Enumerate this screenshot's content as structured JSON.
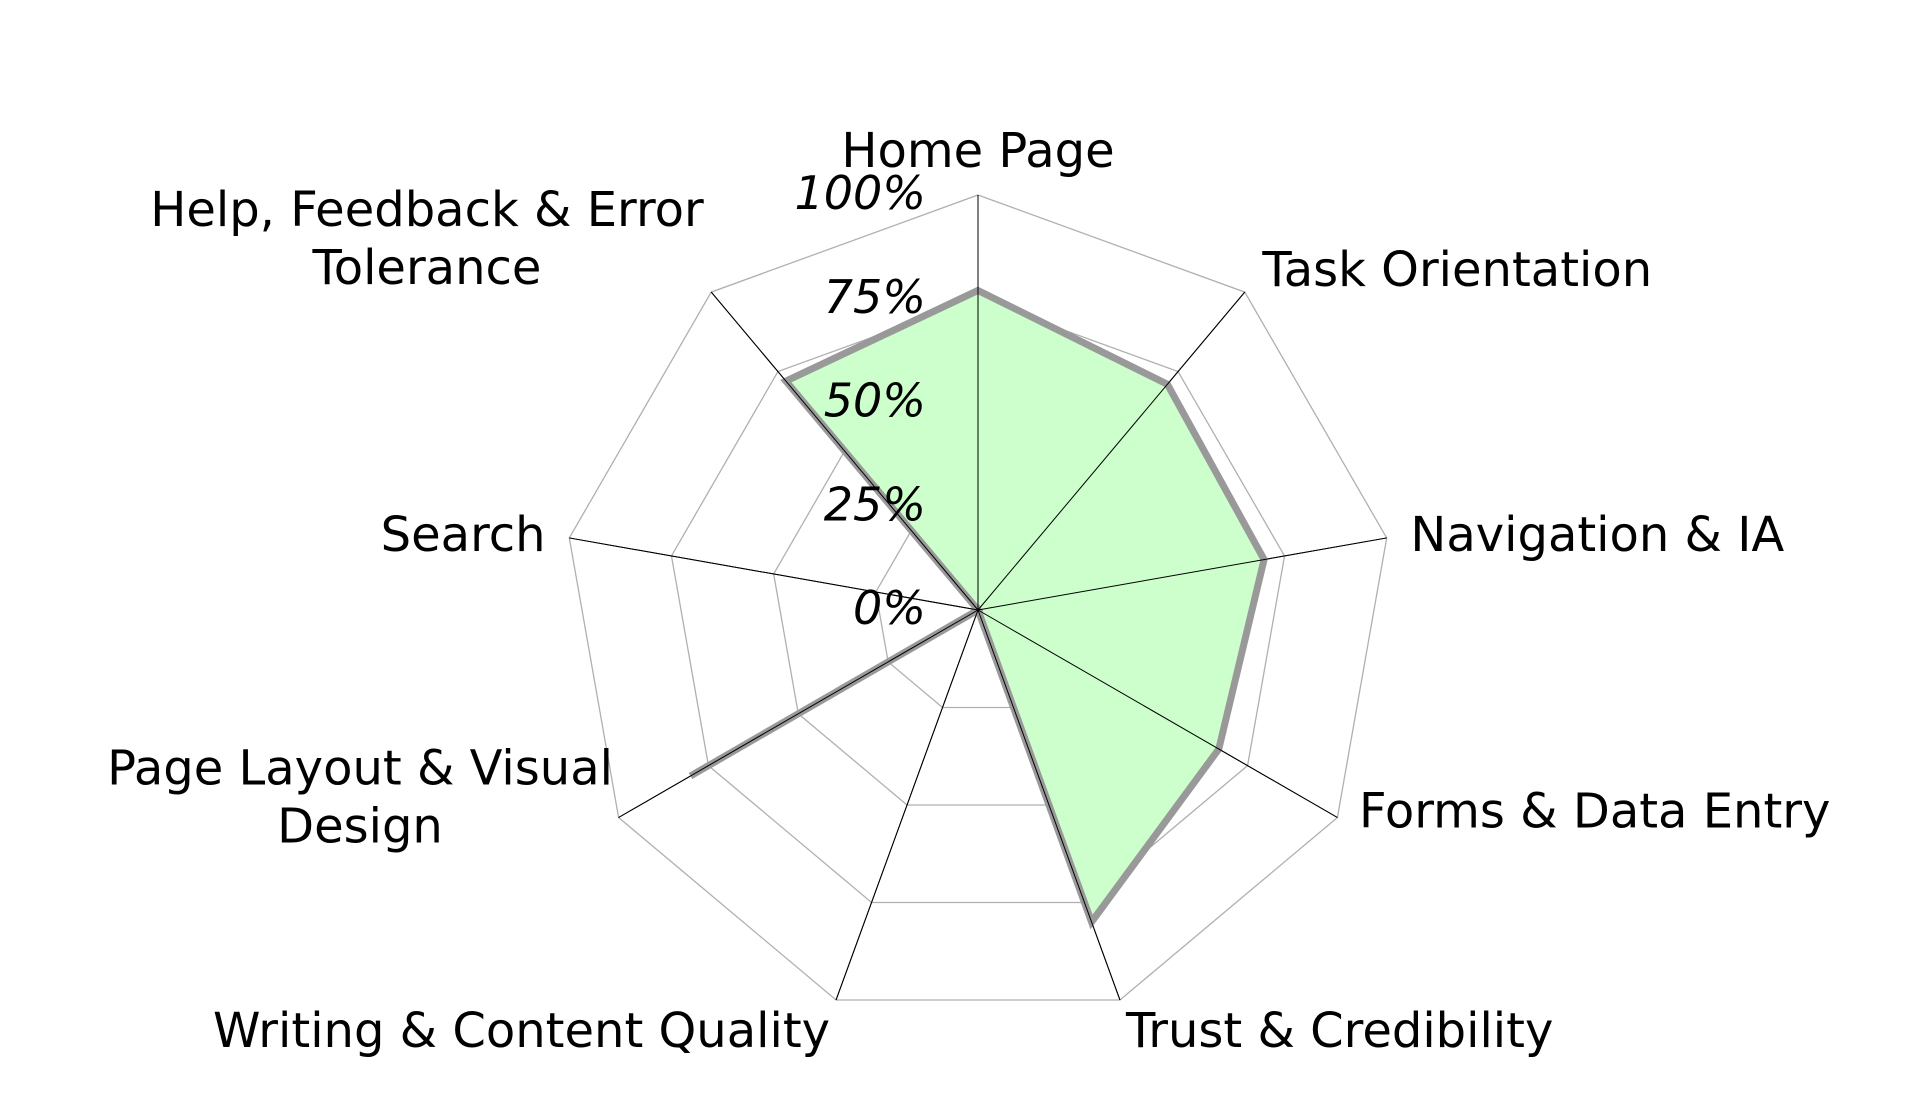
{
  "chart_data": {
    "type": "radar",
    "title": "",
    "categories": [
      "Home Page",
      "Task Orientation",
      "Navigation & IA",
      "Forms & Data Entry",
      "Trust & Credibility",
      "Writing & Content Quality",
      "Page Layout & Visual Design",
      "Search",
      "Help, Feedback & Error Tolerance"
    ],
    "category_lines": [
      [
        "Home Page"
      ],
      [
        "Task Orientation"
      ],
      [
        "Navigation & IA"
      ],
      [
        "Forms & Data Entry"
      ],
      [
        "Trust & Credibility"
      ],
      [
        "Writing & Content Quality"
      ],
      [
        "Page Layout & Visual",
        "Design"
      ],
      [
        "Search"
      ],
      [
        "Help, Feedback & Error",
        "Tolerance"
      ]
    ],
    "series": [
      {
        "values": [
          77,
          71,
          70,
          67,
          80,
          0,
          80,
          0,
          72
        ]
      }
    ],
    "rlim": [
      0,
      100
    ],
    "ticks": [
      0,
      25,
      50,
      75,
      100
    ],
    "tick_labels": [
      "0%",
      "25%",
      "50%",
      "75%",
      "100%"
    ],
    "grid": true,
    "legend": "none",
    "colors": {
      "fill": "#ccffcc",
      "outline": "#999999",
      "grid": "#b0b0b0",
      "spoke": "#000000"
    }
  }
}
